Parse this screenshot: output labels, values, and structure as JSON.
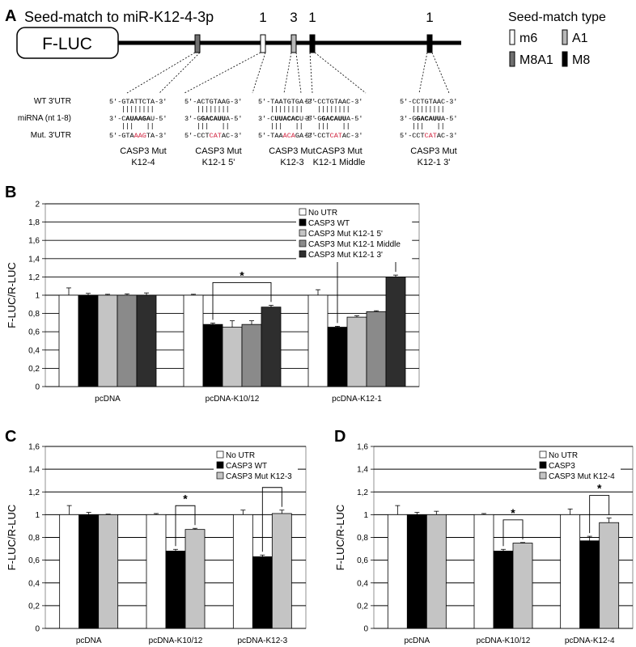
{
  "panel_a": {
    "letter": "A",
    "title": "Seed-match to miR-K12-4-3p",
    "box_label": "F-LUC",
    "site_counts": [
      "1",
      "3",
      "1",
      "1"
    ],
    "legend_title": "Seed-match type",
    "legend_items": [
      {
        "label": "m6",
        "color": "#ffffff"
      },
      {
        "label": "A1",
        "color": "#b8b8b8"
      },
      {
        "label": "M8A1",
        "color": "#707070"
      },
      {
        "label": "M8",
        "color": "#000000"
      }
    ],
    "row_labels": [
      "WT 3'UTR",
      "miRNA (nt 1-8)",
      "Mut. 3'UTR"
    ],
    "alignments": [
      {
        "wt": "5'-GTATTCTA-3'",
        "mirna": "3'-CAUAAGAU-5'",
        "mut_pre": "5'-GTA",
        "mut_red": "AAG",
        "mut_post": "TA-3'",
        "name": [
          "CASP3 Mut",
          "K12-4"
        ]
      },
      {
        "wt": "5'-ACTGTAAG-3'",
        "mirna": "3'-GGACAUUA-5'",
        "mut_pre": "5'-CCT",
        "mut_red": "CAT",
        "mut_post": "AC-3'",
        "name": [
          "CASP3 Mut",
          "K12-1 5'"
        ]
      },
      {
        "wt": "5'-TAATGTGA-3'",
        "mirna": "3'-CUUACACU-5'",
        "mut_pre": "5'-TAA",
        "mut_red": "ACA",
        "mut_post": "GA-3'",
        "name": [
          "CASP3 Mut",
          "K12-3"
        ]
      },
      {
        "wt": "5'-CCTGTAAC-3'",
        "mirna": "3'-GGACAUUA-5'",
        "mut_pre": "5'-CCT",
        "mut_red": "CAT",
        "mut_post": "AC-3'",
        "name": [
          "CASP3 Mut",
          "K12-1 Middle"
        ]
      },
      {
        "wt": "5'-CCTGTAAC-3'",
        "mirna": "3'-GGACAUUA-5'",
        "mut_pre": "5'-CCT",
        "mut_red": "CAT",
        "mut_post": "AC-3'",
        "name": [
          "CASP3 Mut",
          "K12-1 3'"
        ]
      }
    ],
    "site_types": [
      "M8A1",
      "m6",
      "A1",
      "M8",
      "M8"
    ]
  },
  "chart_data": [
    {
      "panel": "B",
      "type": "bar",
      "ylabel": "F-LUC/R-LUC",
      "ylim": [
        0,
        2
      ],
      "yticks": [
        "0",
        "0,2",
        "0,4",
        "0,6",
        "0,8",
        "1",
        "1,2",
        "1,4",
        "1,6",
        "1,8",
        "2"
      ],
      "categories": [
        "pcDNA",
        "pcDNA-K10/12",
        "pcDNA-K12-1"
      ],
      "grid": true,
      "legend_position": "top-right",
      "series": [
        {
          "name": "No UTR",
          "color": "#ffffff",
          "values": [
            1.0,
            1.0,
            1.0
          ],
          "errors": [
            0.08,
            0.01,
            0.06
          ]
        },
        {
          "name": "CASP3 WT",
          "color": "#000000",
          "values": [
            1.0,
            0.68,
            0.65
          ],
          "errors": [
            0.02,
            0.015,
            0.01
          ]
        },
        {
          "name": "CASP3 Mut K12-1 5'",
          "color": "#c4c4c4",
          "values": [
            1.0,
            0.65,
            0.76
          ],
          "errors": [
            0.01,
            0.07,
            0.015
          ]
        },
        {
          "name": "CASP3 Mut K12-1 Middle",
          "color": "#8a8a8a",
          "values": [
            1.0,
            0.68,
            0.82
          ],
          "errors": [
            0.015,
            0.04,
            0.01
          ]
        },
        {
          "name": "CASP3 Mut K12-1 3'",
          "color": "#2e2e2e",
          "values": [
            1.0,
            0.87,
            1.2
          ],
          "errors": [
            0.025,
            0.02,
            0.02
          ]
        }
      ],
      "significance": [
        {
          "group": 1,
          "from": 1,
          "to": 4,
          "label": "*"
        },
        {
          "group": 2,
          "from": 1,
          "to": 4,
          "label": "*"
        }
      ]
    },
    {
      "panel": "C",
      "type": "bar",
      "ylabel": "F-LUC/R-LUC",
      "ylim": [
        0,
        1.6
      ],
      "yticks": [
        "0",
        "0,2",
        "0,4",
        "0,6",
        "0,8",
        "1",
        "1,2",
        "1,4",
        "1,6"
      ],
      "categories": [
        "pcDNA",
        "pcDNA-K10/12",
        "pcDNA-K12-3"
      ],
      "grid": true,
      "legend_position": "top-right",
      "series": [
        {
          "name": "No UTR",
          "color": "#ffffff",
          "values": [
            1.0,
            1.0,
            1.0
          ],
          "errors": [
            0.08,
            0.01,
            0.04
          ]
        },
        {
          "name": "CASP3 WT",
          "color": "#000000",
          "values": [
            1.0,
            0.68,
            0.63
          ],
          "errors": [
            0.02,
            0.015,
            0.015
          ]
        },
        {
          "name": "CASP3 Mut K12-3",
          "color": "#c4c4c4",
          "values": [
            1.0,
            0.87,
            1.01
          ],
          "errors": [
            0.005,
            0.01,
            0.03
          ]
        }
      ],
      "significance": [
        {
          "group": 1,
          "from": 1,
          "to": 2,
          "label": "*"
        },
        {
          "group": 2,
          "from": 1,
          "to": 2,
          "label": "*"
        }
      ]
    },
    {
      "panel": "D",
      "type": "bar",
      "ylabel": "F-LUC/R-LUC",
      "ylim": [
        0,
        1.6
      ],
      "yticks": [
        "0",
        "0,2",
        "0,4",
        "0,6",
        "0,8",
        "1",
        "1,2",
        "1,4",
        "1,6"
      ],
      "categories": [
        "pcDNA",
        "pcDNA-K10/12",
        "pcDNA-K12-4"
      ],
      "grid": true,
      "legend_position": "top-right",
      "series": [
        {
          "name": "No UTR",
          "color": "#ffffff",
          "values": [
            1.0,
            1.0,
            1.0
          ],
          "errors": [
            0.08,
            0.01,
            0.05
          ]
        },
        {
          "name": "CASP3",
          "color": "#000000",
          "values": [
            1.0,
            0.68,
            0.77
          ],
          "errors": [
            0.02,
            0.015,
            0.04
          ]
        },
        {
          "name": "CASP3 Mut K12-4",
          "color": "#c4c4c4",
          "values": [
            1.0,
            0.75,
            0.93
          ],
          "errors": [
            0.03,
            0.005,
            0.04
          ]
        }
      ],
      "significance": [
        {
          "group": 1,
          "from": 1,
          "to": 2,
          "label": "*"
        },
        {
          "group": 2,
          "from": 1,
          "to": 2,
          "label": "*"
        }
      ]
    }
  ]
}
